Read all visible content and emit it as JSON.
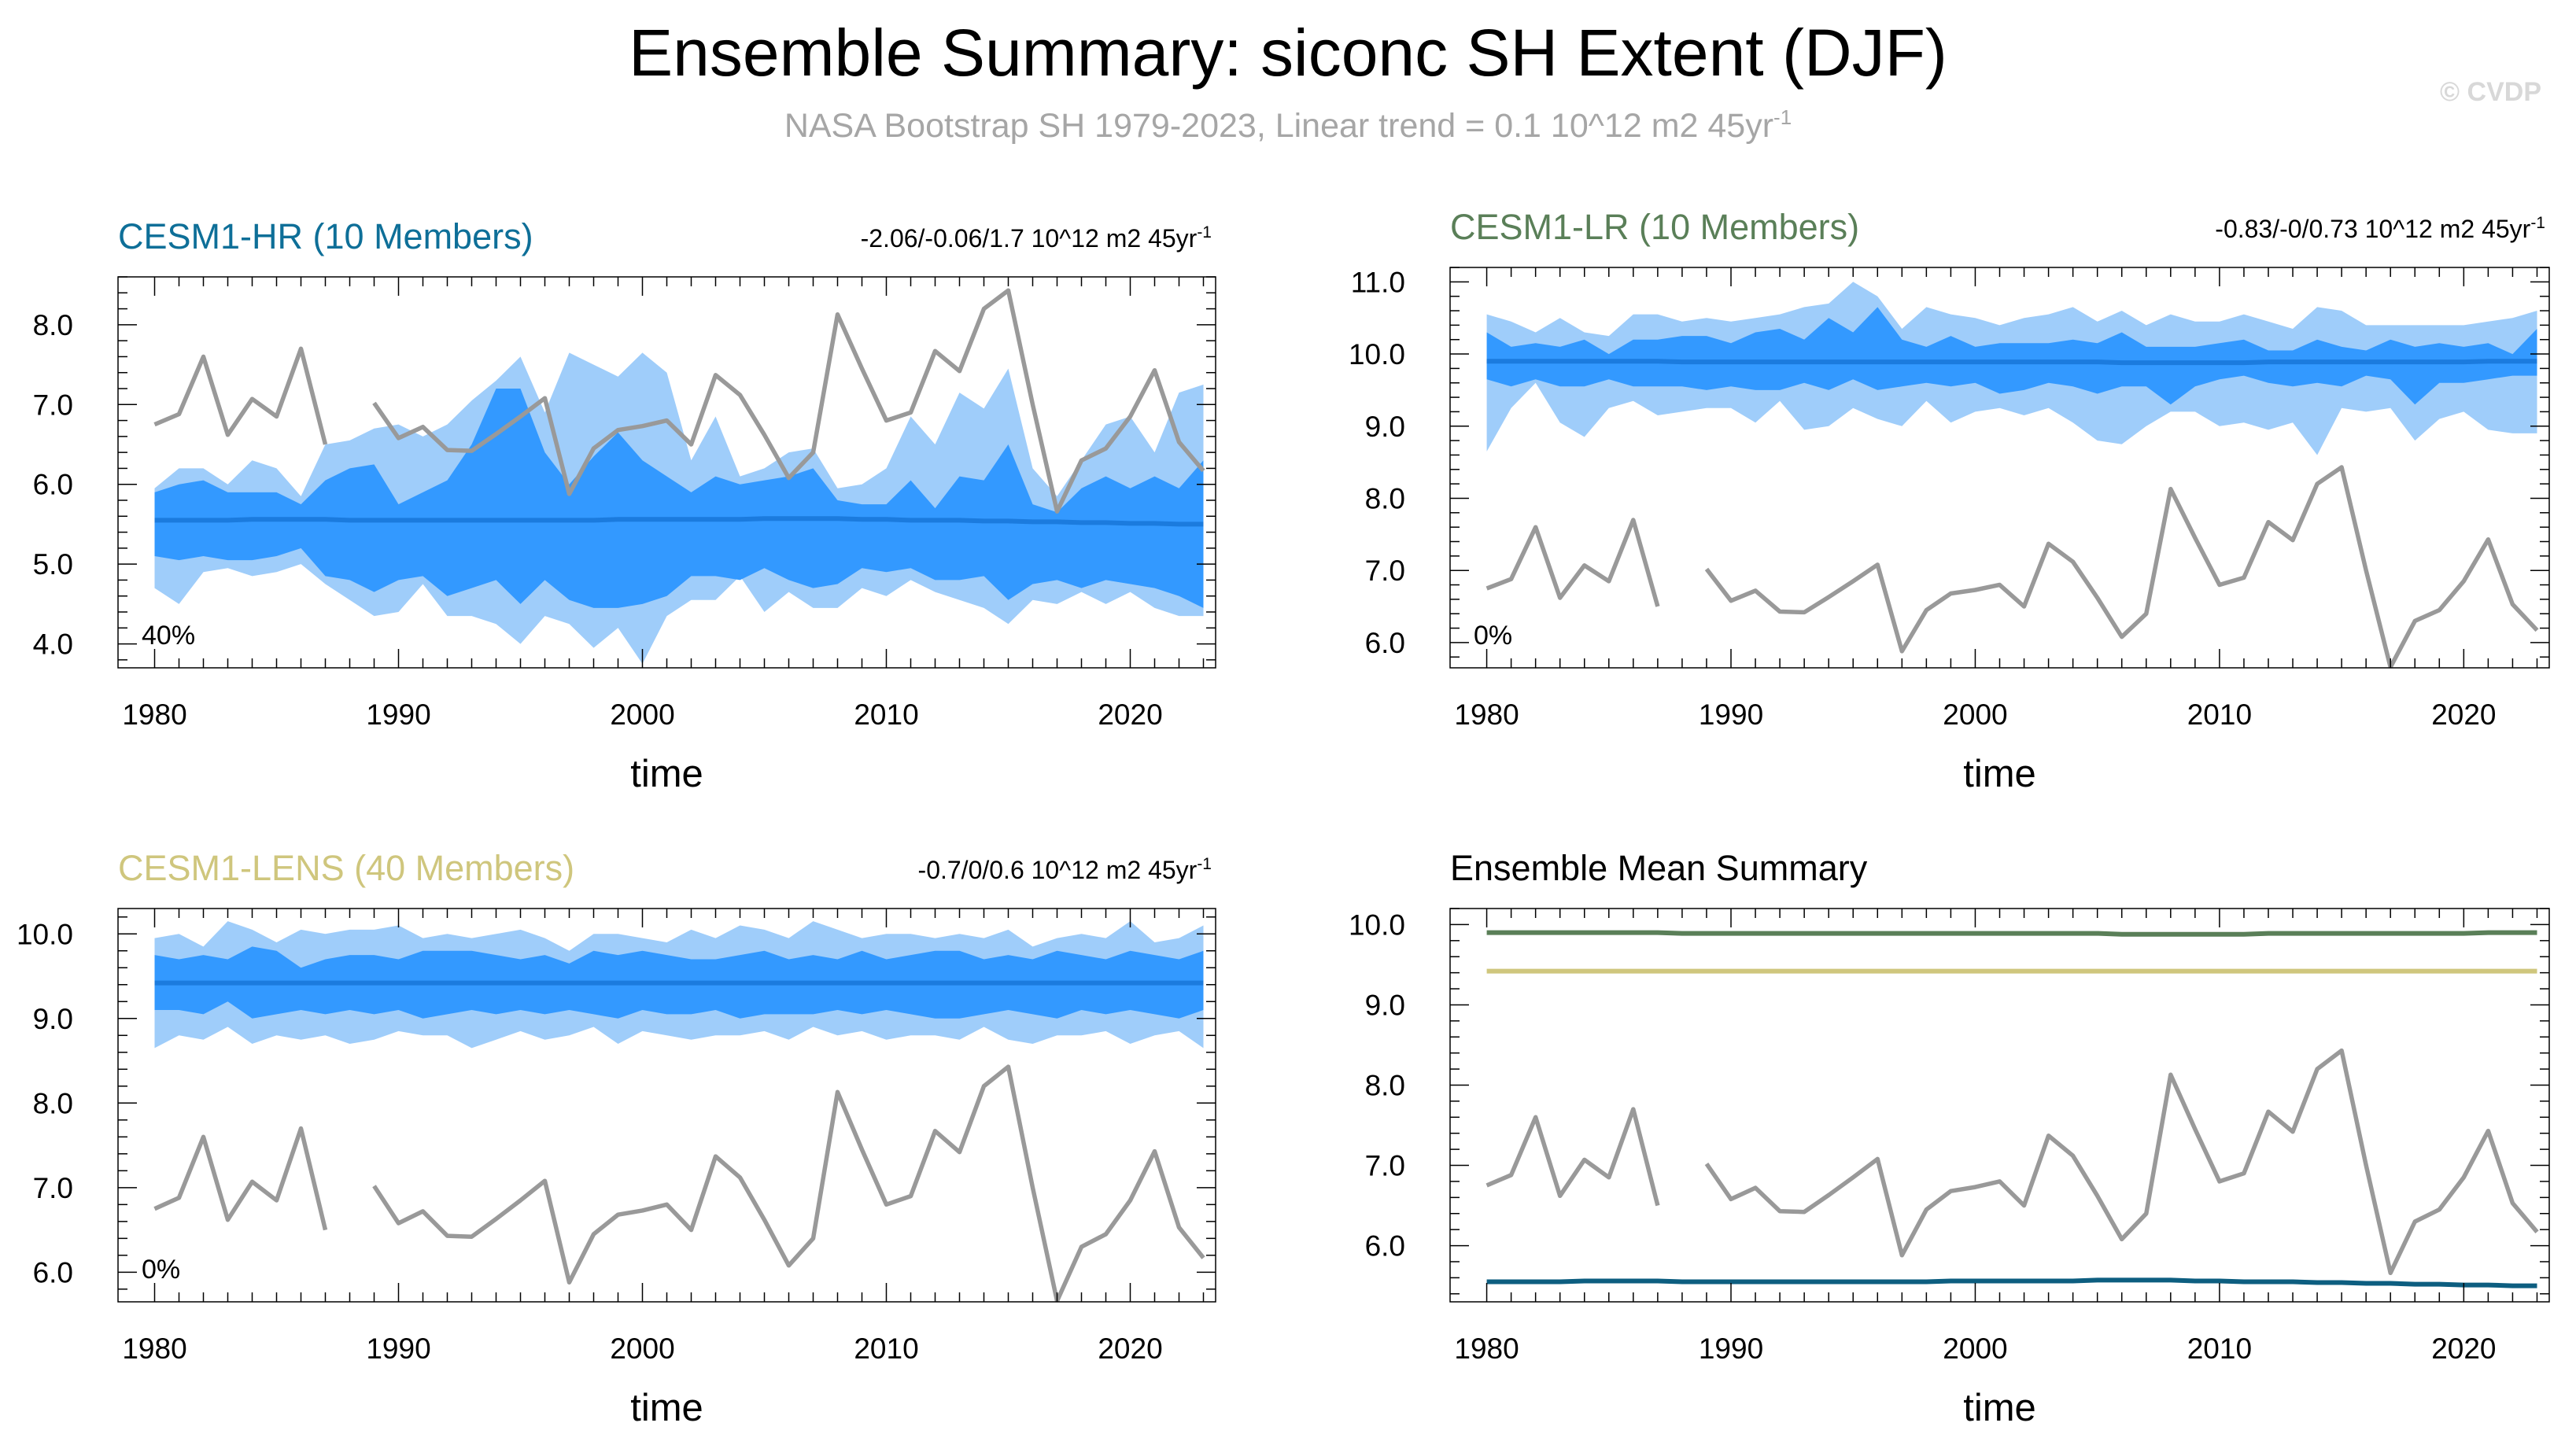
{
  "title": "Ensemble Summary: siconc SH Extent (DJF)",
  "subtitle_text": "NASA Bootstrap SH 1979-2023, Linear trend = 0.1 10^12 m2 45yr",
  "subtitle_sup": "-1",
  "watermark": "© CVDP",
  "observations": {
    "name": "NASA Bootstrap SH",
    "color": "#999999",
    "years": [
      1980,
      1981,
      1982,
      1983,
      1984,
      1985,
      1986,
      1987,
      1988,
      1989,
      1990,
      1991,
      1992,
      1993,
      1994,
      1995,
      1996,
      1997,
      1998,
      1999,
      2000,
      2001,
      2002,
      2003,
      2004,
      2005,
      2006,
      2007,
      2008,
      2009,
      2010,
      2011,
      2012,
      2013,
      2014,
      2015,
      2016,
      2017,
      2018,
      2019,
      2020,
      2021,
      2022,
      2023
    ],
    "values": [
      6.75,
      6.88,
      7.6,
      6.62,
      7.07,
      6.85,
      7.7,
      6.5,
      null,
      7.02,
      6.58,
      6.72,
      6.43,
      6.42,
      6.63,
      6.85,
      7.08,
      5.88,
      6.45,
      6.68,
      6.73,
      6.8,
      6.5,
      7.37,
      7.12,
      6.62,
      6.08,
      6.4,
      8.13,
      7.45,
      6.8,
      6.9,
      7.67,
      7.42,
      8.2,
      8.43,
      7.0,
      5.66,
      6.3,
      6.45,
      6.85,
      7.43,
      6.53,
      6.17
    ]
  },
  "chart_data": [
    {
      "type": "area",
      "id": "hr",
      "title": "CESM1-HR (10 Members)",
      "title_color": "#0e6f98",
      "trend_text": "-2.06/-0.06/1.7 10^12 m2 45yr",
      "trend_sup": "-1",
      "percent_label": "40%",
      "xlabel": "time",
      "xlim": [
        1978.5,
        2023.5
      ],
      "ylim": [
        3.7,
        8.6
      ],
      "xticks": [
        1980,
        1990,
        2000,
        2010,
        2020
      ],
      "yticks": [
        4.0,
        5.0,
        6.0,
        7.0,
        8.0
      ],
      "ytick_labels": [
        "4.0",
        "5.0",
        "6.0",
        "7.0",
        "8.0"
      ],
      "mean": [
        5.55,
        5.55,
        5.55,
        5.55,
        5.56,
        5.56,
        5.56,
        5.56,
        5.55,
        5.55,
        5.55,
        5.55,
        5.55,
        5.55,
        5.55,
        5.55,
        5.55,
        5.55,
        5.55,
        5.56,
        5.56,
        5.56,
        5.56,
        5.56,
        5.56,
        5.57,
        5.57,
        5.57,
        5.57,
        5.56,
        5.56,
        5.55,
        5.55,
        5.55,
        5.54,
        5.54,
        5.53,
        5.53,
        5.52,
        5.52,
        5.51,
        5.51,
        5.5,
        5.5
      ],
      "outer_high": [
        5.95,
        6.2,
        6.2,
        6.0,
        6.3,
        6.2,
        5.85,
        6.5,
        6.55,
        6.7,
        6.75,
        6.6,
        6.75,
        7.05,
        7.3,
        7.6,
        6.9,
        7.65,
        7.5,
        7.35,
        7.65,
        7.4,
        6.3,
        6.85,
        6.1,
        6.2,
        6.4,
        6.45,
        5.95,
        6.0,
        6.2,
        6.85,
        6.5,
        7.15,
        6.95,
        7.45,
        6.2,
        5.85,
        6.3,
        6.75,
        6.85,
        6.4,
        7.15,
        7.25
      ],
      "inner_high": [
        5.9,
        6.0,
        6.05,
        5.9,
        5.9,
        5.9,
        5.75,
        6.05,
        6.2,
        6.25,
        5.75,
        5.9,
        6.05,
        6.5,
        7.2,
        7.2,
        6.4,
        6.0,
        6.35,
        6.65,
        6.3,
        6.1,
        5.9,
        6.1,
        6.0,
        6.05,
        6.1,
        6.2,
        5.8,
        5.75,
        5.75,
        6.05,
        5.7,
        6.1,
        6.05,
        6.5,
        5.75,
        5.65,
        5.95,
        6.1,
        5.95,
        6.1,
        5.95,
        6.3
      ],
      "inner_low": [
        5.1,
        5.05,
        5.1,
        5.05,
        5.05,
        5.1,
        5.2,
        4.85,
        4.8,
        4.65,
        4.8,
        4.85,
        4.6,
        4.7,
        4.8,
        4.5,
        4.8,
        4.55,
        4.45,
        4.45,
        4.5,
        4.6,
        4.85,
        4.85,
        4.8,
        4.95,
        4.8,
        4.7,
        4.75,
        4.95,
        4.9,
        4.95,
        4.8,
        4.8,
        4.85,
        4.55,
        4.75,
        4.8,
        4.7,
        4.8,
        4.75,
        4.7,
        4.6,
        4.45
      ],
      "outer_low": [
        4.7,
        4.5,
        4.9,
        4.95,
        4.85,
        4.9,
        5.0,
        4.75,
        4.55,
        4.35,
        4.4,
        4.75,
        4.35,
        4.35,
        4.25,
        4.0,
        4.35,
        4.25,
        3.95,
        4.2,
        3.75,
        4.35,
        4.55,
        4.55,
        4.85,
        4.4,
        4.65,
        4.45,
        4.45,
        4.7,
        4.6,
        4.8,
        4.65,
        4.55,
        4.45,
        4.25,
        4.55,
        4.5,
        4.65,
        4.5,
        4.65,
        4.45,
        4.35,
        4.35
      ]
    },
    {
      "type": "area",
      "id": "lr",
      "title": "CESM1-LR (10 Members)",
      "title_color": "#5a7f58",
      "trend_text": "-0.83/-0/0.73 10^12 m2 45yr",
      "trend_sup": "-1",
      "percent_label": "0%",
      "xlabel": "time",
      "xlim": [
        1978.5,
        2023.5
      ],
      "ylim": [
        5.65,
        11.2
      ],
      "xticks": [
        1980,
        1990,
        2000,
        2010,
        2020
      ],
      "yticks": [
        6.0,
        7.0,
        8.0,
        9.0,
        10.0,
        11.0
      ],
      "ytick_labels": [
        "6.0",
        "7.0",
        "8.0",
        "9.0",
        "10.0",
        "11.0"
      ],
      "mean": [
        9.9,
        9.9,
        9.9,
        9.9,
        9.9,
        9.9,
        9.9,
        9.9,
        9.89,
        9.89,
        9.89,
        9.89,
        9.89,
        9.89,
        9.89,
        9.89,
        9.89,
        9.89,
        9.89,
        9.89,
        9.89,
        9.89,
        9.89,
        9.89,
        9.89,
        9.89,
        9.88,
        9.88,
        9.88,
        9.88,
        9.88,
        9.88,
        9.89,
        9.89,
        9.89,
        9.89,
        9.89,
        9.89,
        9.89,
        9.89,
        9.89,
        9.9,
        9.9,
        9.9
      ],
      "outer_high": [
        10.55,
        10.45,
        10.3,
        10.5,
        10.3,
        10.25,
        10.55,
        10.55,
        10.45,
        10.5,
        10.45,
        10.5,
        10.55,
        10.65,
        10.7,
        11.0,
        10.8,
        10.35,
        10.65,
        10.55,
        10.5,
        10.4,
        10.5,
        10.55,
        10.65,
        10.45,
        10.6,
        10.4,
        10.55,
        10.45,
        10.45,
        10.55,
        10.45,
        10.35,
        10.65,
        10.6,
        10.4,
        10.4,
        10.4,
        10.4,
        10.4,
        10.45,
        10.5,
        10.6
      ],
      "inner_high": [
        10.3,
        10.1,
        10.15,
        10.1,
        10.2,
        10.0,
        10.2,
        10.2,
        10.25,
        10.25,
        10.15,
        10.3,
        10.35,
        10.2,
        10.5,
        10.3,
        10.65,
        10.2,
        10.1,
        10.25,
        10.1,
        10.15,
        10.15,
        10.15,
        10.2,
        10.15,
        10.3,
        10.1,
        10.1,
        10.1,
        10.15,
        10.2,
        10.05,
        10.05,
        10.2,
        10.1,
        10.05,
        10.2,
        10.1,
        10.15,
        10.1,
        10.15,
        10.0,
        10.35
      ],
      "inner_low": [
        9.65,
        9.55,
        9.65,
        9.55,
        9.55,
        9.65,
        9.55,
        9.55,
        9.55,
        9.5,
        9.55,
        9.5,
        9.5,
        9.6,
        9.5,
        9.65,
        9.5,
        9.55,
        9.6,
        9.55,
        9.6,
        9.45,
        9.5,
        9.6,
        9.55,
        9.45,
        9.55,
        9.55,
        9.3,
        9.55,
        9.65,
        9.7,
        9.6,
        9.55,
        9.6,
        9.55,
        9.7,
        9.65,
        9.3,
        9.6,
        9.6,
        9.65,
        9.7,
        9.7
      ],
      "outer_low": [
        8.65,
        9.25,
        9.6,
        9.05,
        8.85,
        9.25,
        9.35,
        9.15,
        9.2,
        9.25,
        9.25,
        9.05,
        9.35,
        8.95,
        9.0,
        9.25,
        9.1,
        9.0,
        9.35,
        9.05,
        9.2,
        9.25,
        9.15,
        9.25,
        9.05,
        8.8,
        8.75,
        9.0,
        9.2,
        9.2,
        9.0,
        9.05,
        8.95,
        9.05,
        8.6,
        9.25,
        9.2,
        9.25,
        8.8,
        9.1,
        9.2,
        8.95,
        8.9,
        8.9
      ]
    },
    {
      "type": "area",
      "id": "lens",
      "title": "CESM1-LENS (40 Members)",
      "title_color": "#cfc67d",
      "trend_text": "-0.7/0/0.6 10^12 m2 45yr",
      "trend_sup": "-1",
      "percent_label": "0%",
      "xlabel": "time",
      "xlim": [
        1978.5,
        2023.5
      ],
      "ylim": [
        5.65,
        10.3
      ],
      "xticks": [
        1980,
        1990,
        2000,
        2010,
        2020
      ],
      "yticks": [
        6.0,
        7.0,
        8.0,
        9.0,
        10.0
      ],
      "ytick_labels": [
        "6.0",
        "7.0",
        "8.0",
        "9.0",
        "10.0"
      ],
      "mean": [
        9.42,
        9.42,
        9.42,
        9.42,
        9.42,
        9.42,
        9.42,
        9.42,
        9.42,
        9.42,
        9.42,
        9.42,
        9.42,
        9.42,
        9.42,
        9.42,
        9.42,
        9.42,
        9.42,
        9.42,
        9.42,
        9.42,
        9.42,
        9.42,
        9.42,
        9.42,
        9.42,
        9.42,
        9.42,
        9.42,
        9.42,
        9.42,
        9.42,
        9.42,
        9.42,
        9.42,
        9.42,
        9.42,
        9.42,
        9.42,
        9.42,
        9.42,
        9.42,
        9.42
      ],
      "outer_high": [
        9.95,
        10.0,
        9.85,
        10.15,
        10.05,
        9.9,
        10.05,
        10.0,
        10.05,
        10.05,
        10.1,
        9.95,
        10.0,
        9.95,
        10.0,
        10.05,
        9.95,
        9.8,
        10.0,
        10.0,
        9.95,
        9.9,
        10.05,
        9.95,
        10.1,
        10.05,
        9.95,
        10.15,
        10.05,
        9.95,
        10.0,
        10.0,
        9.95,
        10.0,
        9.95,
        10.05,
        9.85,
        9.95,
        10.0,
        9.95,
        10.15,
        9.9,
        9.95,
        10.1
      ],
      "inner_high": [
        9.75,
        9.7,
        9.75,
        9.7,
        9.85,
        9.8,
        9.6,
        9.7,
        9.75,
        9.75,
        9.7,
        9.8,
        9.8,
        9.8,
        9.75,
        9.7,
        9.75,
        9.65,
        9.8,
        9.75,
        9.8,
        9.75,
        9.7,
        9.7,
        9.75,
        9.8,
        9.7,
        9.75,
        9.7,
        9.8,
        9.7,
        9.75,
        9.8,
        9.8,
        9.7,
        9.75,
        9.7,
        9.8,
        9.75,
        9.7,
        9.8,
        9.75,
        9.7,
        9.8
      ],
      "inner_low": [
        9.1,
        9.1,
        9.05,
        9.2,
        9.0,
        9.05,
        9.1,
        9.05,
        9.1,
        9.05,
        9.1,
        9.0,
        9.05,
        9.1,
        9.05,
        9.1,
        9.05,
        9.1,
        9.05,
        9.0,
        9.1,
        9.05,
        9.05,
        9.1,
        9.0,
        9.05,
        9.05,
        9.05,
        9.1,
        9.05,
        9.1,
        9.05,
        9.0,
        9.0,
        9.05,
        9.1,
        9.05,
        9.0,
        9.1,
        9.05,
        9.1,
        9.05,
        9.0,
        9.1
      ],
      "outer_low": [
        8.65,
        8.8,
        8.75,
        8.9,
        8.7,
        8.8,
        8.75,
        8.8,
        8.7,
        8.75,
        8.85,
        8.8,
        8.8,
        8.65,
        8.75,
        8.85,
        8.75,
        8.8,
        8.9,
        8.7,
        8.85,
        8.8,
        8.75,
        8.8,
        8.8,
        8.85,
        8.75,
        8.9,
        8.8,
        8.85,
        8.75,
        8.8,
        8.8,
        8.75,
        8.9,
        8.75,
        8.7,
        8.8,
        8.8,
        8.85,
        8.7,
        8.8,
        8.85,
        8.65
      ]
    },
    {
      "type": "line",
      "id": "summary",
      "title": "Ensemble Mean Summary",
      "title_color": "#000000",
      "xlabel": "time",
      "xlim": [
        1978.5,
        2023.5
      ],
      "ylim": [
        5.3,
        10.2
      ],
      "xticks": [
        1980,
        1990,
        2000,
        2010,
        2020
      ],
      "yticks": [
        6.0,
        7.0,
        8.0,
        9.0,
        10.0
      ],
      "ytick_labels": [
        "6.0",
        "7.0",
        "8.0",
        "9.0",
        "10.0"
      ],
      "series": [
        {
          "name": "CESM1-LR",
          "color": "#5a7f58",
          "source": "lr"
        },
        {
          "name": "CESM1-LENS",
          "color": "#cfc67d",
          "source": "lens"
        },
        {
          "name": "CESM1-HR",
          "color": "#0d5e80",
          "source": "hr"
        },
        {
          "name": "NASA Bootstrap SH",
          "color": "#999999",
          "source": "obs"
        }
      ]
    }
  ]
}
